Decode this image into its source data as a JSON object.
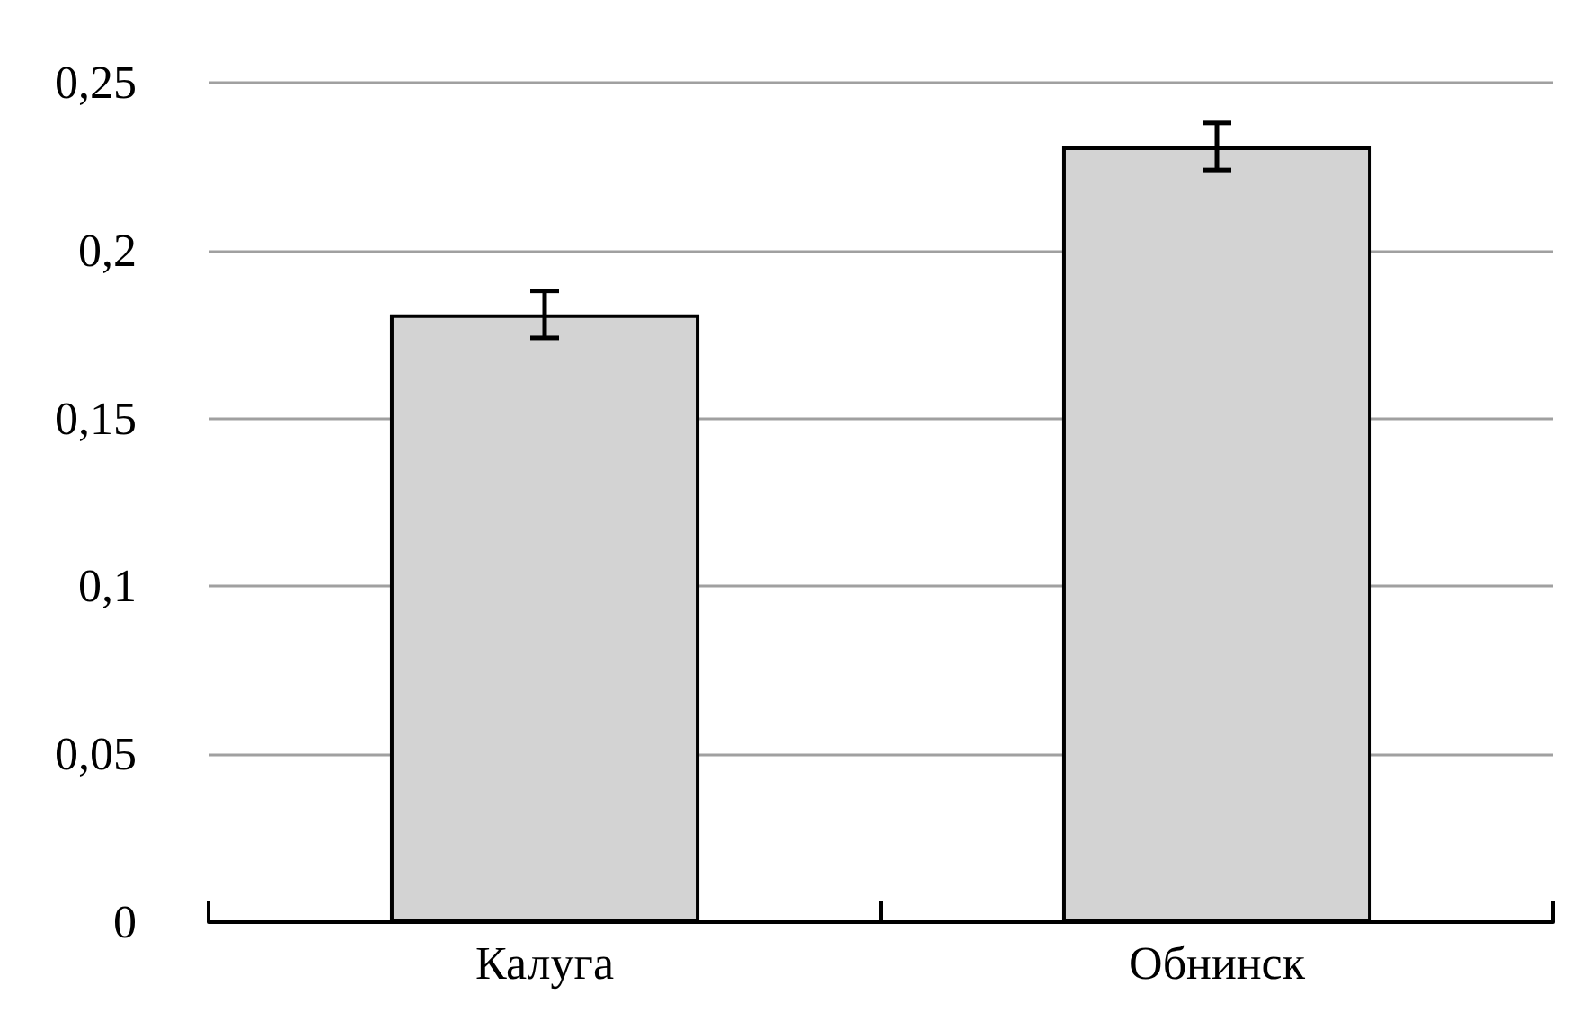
{
  "chart_data": {
    "type": "bar",
    "categories": [
      "Калуга",
      "Обнинск"
    ],
    "values": [
      0.181,
      0.231
    ],
    "color": "#d3d3d3",
    "errors": [
      0.007,
      0.007
    ],
    "ylim": [
      0,
      0.25
    ],
    "yticks": [
      0,
      {
        "value": 0.05,
        "label": "0,05"
      },
      {
        "value": 0.1,
        "label": "0,1"
      },
      {
        "value": 0.15,
        "label": "0,15"
      },
      {
        "value": 0.2,
        "label": "0,2"
      },
      {
        "value": 0.25,
        "label": "0,25"
      }
    ],
    "grid": "y"
  }
}
